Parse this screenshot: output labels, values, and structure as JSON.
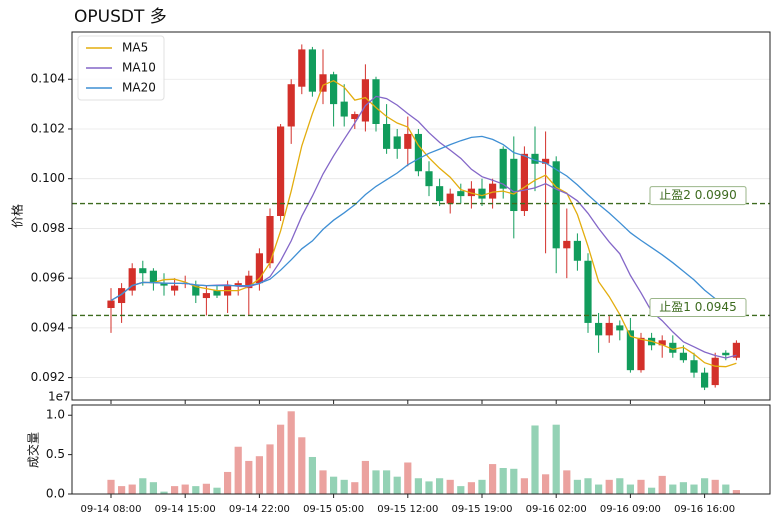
{
  "chart_data": [
    {
      "type": "candlestick",
      "title": "OPUSDT  多",
      "y_label": "价格",
      "categories": [
        "09-14 08:00",
        null,
        null,
        null,
        null,
        null,
        null,
        "09-14 15:00",
        null,
        null,
        null,
        null,
        null,
        null,
        "09-14 22:00",
        null,
        null,
        null,
        null,
        null,
        null,
        "09-15 05:00",
        null,
        null,
        null,
        null,
        null,
        null,
        "09-15 12:00",
        null,
        null,
        null,
        null,
        null,
        null,
        "09-15 19:00",
        null,
        null,
        null,
        null,
        null,
        null,
        "09-16 02:00",
        null,
        null,
        null,
        null,
        null,
        null,
        "09-16 09:00",
        null,
        null,
        null,
        null,
        null,
        null,
        "09-16 16:00",
        null,
        null,
        null
      ],
      "open": [
        0.0948,
        0.095,
        0.0955,
        0.0964,
        0.0963,
        0.0958,
        0.0955,
        0.0958,
        0.0957,
        0.0952,
        0.0955,
        0.0953,
        0.0957,
        0.0956,
        0.0958,
        0.0966,
        0.0985,
        0.1021,
        0.1037,
        0.1052,
        0.1035,
        0.1042,
        0.1031,
        0.1024,
        0.1023,
        0.104,
        0.1022,
        0.1017,
        0.1012,
        0.1018,
        0.1003,
        0.0997,
        0.099,
        0.0995,
        0.0993,
        0.0996,
        0.0992,
        0.1012,
        0.1008,
        0.0987,
        0.101,
        0.1006,
        0.1007,
        0.0972,
        0.0975,
        0.0967,
        0.0942,
        0.0937,
        0.0941,
        0.0939,
        0.0923,
        0.0936,
        0.0933,
        0.0934,
        0.093,
        0.0927,
        0.0922,
        0.0917,
        0.093,
        0.0928
      ],
      "high": [
        0.0956,
        0.0958,
        0.0966,
        0.0967,
        0.0964,
        0.0962,
        0.096,
        0.0961,
        0.0959,
        0.0957,
        0.0957,
        0.0959,
        0.0959,
        0.0963,
        0.0972,
        0.0988,
        0.1022,
        0.104,
        0.1054,
        0.1053,
        0.1052,
        0.1043,
        0.1038,
        0.1027,
        0.1046,
        0.1041,
        0.103,
        0.102,
        0.1025,
        0.102,
        0.1007,
        0.1,
        0.0996,
        0.0998,
        0.0999,
        0.1,
        0.1,
        0.1013,
        0.1017,
        0.1013,
        0.1021,
        0.1019,
        0.1009,
        0.0988,
        0.0978,
        0.097,
        0.0946,
        0.0945,
        0.0943,
        0.0944,
        0.0938,
        0.0938,
        0.0937,
        0.0937,
        0.0933,
        0.093,
        0.0924,
        0.093,
        0.0931,
        0.0935
      ],
      "low": [
        0.0938,
        0.0942,
        0.0953,
        0.0957,
        0.0955,
        0.0953,
        0.0953,
        0.0956,
        0.095,
        0.0945,
        0.0952,
        0.0946,
        0.0953,
        0.0945,
        0.0955,
        0.0964,
        0.0983,
        0.1014,
        0.1034,
        0.1033,
        0.103,
        0.1021,
        0.1021,
        0.102,
        0.1019,
        0.1019,
        0.101,
        0.1008,
        0.1005,
        0.1001,
        0.0993,
        0.0989,
        0.0986,
        0.099,
        0.0988,
        0.0989,
        0.0988,
        0.0992,
        0.0976,
        0.0985,
        0.0995,
        0.097,
        0.0962,
        0.096,
        0.0963,
        0.0938,
        0.093,
        0.0934,
        0.0935,
        0.0922,
        0.0922,
        0.0931,
        0.0928,
        0.0928,
        0.0926,
        0.092,
        0.0915,
        0.0916,
        0.0927,
        0.0927
      ],
      "close": [
        0.0951,
        0.0956,
        0.0964,
        0.0962,
        0.0958,
        0.0957,
        0.0957,
        0.0958,
        0.0953,
        0.0954,
        0.0953,
        0.0957,
        0.0958,
        0.0961,
        0.097,
        0.0985,
        0.1021,
        0.1038,
        0.1052,
        0.1035,
        0.1042,
        0.103,
        0.1025,
        0.1026,
        0.104,
        0.1022,
        0.1012,
        0.1012,
        0.1018,
        0.1003,
        0.0997,
        0.0991,
        0.0994,
        0.0993,
        0.0996,
        0.0992,
        0.0998,
        0.0996,
        0.0987,
        0.101,
        0.1006,
        0.1008,
        0.0972,
        0.0975,
        0.0967,
        0.0942,
        0.0937,
        0.0942,
        0.0939,
        0.0923,
        0.0936,
        0.0933,
        0.0935,
        0.093,
        0.0927,
        0.0922,
        0.0916,
        0.0928,
        0.0929,
        0.0934
      ],
      "up_color": "#d3302a",
      "down_color": "#119c5c",
      "series": [
        {
          "name": "MA5",
          "color": "#e3ad0e",
          "values": [
            0.0951,
            0.09535,
            0.0957,
            0.09583,
            0.09582,
            0.09594,
            0.09596,
            0.09584,
            0.09566,
            0.09558,
            0.0955,
            0.0955,
            0.0955,
            0.09566,
            0.09598,
            0.09662,
            0.0979,
            0.0995,
            0.10132,
            0.10262,
            0.10376,
            0.10394,
            0.10368,
            0.10316,
            0.10326,
            0.10286,
            0.1025,
            0.10224,
            0.10208,
            0.10134,
            0.10084,
            0.10042,
            0.10006,
            0.09956,
            0.09942,
            0.09932,
            0.09946,
            0.0995,
            0.09938,
            0.09966,
            0.09994,
            0.10014,
            0.09966,
            0.09942,
            0.09856,
            0.09728,
            0.09586,
            0.09526,
            0.09454,
            0.09366,
            0.09354,
            0.09346,
            0.09332,
            0.09314,
            0.09322,
            0.09294,
            0.0926,
            0.09246,
            0.09244,
            0.09258
          ]
        },
        {
          "name": "MA10",
          "color": "#8467c8",
          "values": [
            0.0951,
            0.09535,
            0.0957,
            0.09583,
            0.09582,
            0.0958,
            0.09579,
            0.09579,
            0.09573,
            0.0957,
            0.09572,
            0.09573,
            0.09567,
            0.09566,
            0.09578,
            0.09606,
            0.0967,
            0.0975,
            0.09849,
            0.0993,
            0.10019,
            0.10092,
            0.10159,
            0.10224,
            0.10294,
            0.10331,
            0.10322,
            0.10296,
            0.10262,
            0.1023,
            0.10185,
            0.10146,
            0.10115,
            0.10082,
            0.10038,
            0.10008,
            0.09994,
            0.09978,
            0.09947,
            0.09954,
            0.09963,
            0.0998,
            0.09958,
            0.0994,
            0.09911,
            0.09861,
            0.098,
            0.09746,
            0.09698,
            0.09611,
            0.09541,
            0.09466,
            0.09429,
            0.09384,
            0.09344,
            0.09324,
            0.09303,
            0.09289,
            0.09279,
            0.0929
          ]
        },
        {
          "name": "MA20",
          "color": "#3f8fd4",
          "values": [
            0.0951,
            0.09535,
            0.0957,
            0.09583,
            0.09582,
            0.0958,
            0.09579,
            0.09579,
            0.09573,
            0.0957,
            0.0957,
            0.0957,
            0.0957,
            0.0957,
            0.09579,
            0.09596,
            0.09632,
            0.09674,
            0.09718,
            0.0975,
            0.09796,
            0.09833,
            0.09863,
            0.09895,
            0.09936,
            0.09969,
            0.09996,
            0.10023,
            0.10056,
            0.1008,
            0.10102,
            0.10119,
            0.10137,
            0.10153,
            0.10166,
            0.1017,
            0.10158,
            0.10137,
            0.10105,
            0.10092,
            0.10074,
            0.10063,
            0.10037,
            0.10011,
            0.09975,
            0.09935,
            0.09897,
            0.09862,
            0.09823,
            0.09783,
            0.09752,
            0.09723,
            0.09694,
            0.09662,
            0.09628,
            0.09593,
            0.09552,
            0.09518,
            0.09489,
            0.09451
          ]
        }
      ],
      "ylim": [
        0.0911,
        0.1059
      ],
      "yticks": [
        0.092,
        0.094,
        0.096,
        0.098,
        {
          "value": 0.1,
          "label": "0.100"
        },
        0.102,
        0.104
      ],
      "hlines": [
        {
          "value": 0.099,
          "label": "止盈2 0.0990"
        },
        {
          "value": 0.0945,
          "label": "止盈1 0.0945"
        }
      ],
      "hline_color": "#3d6b1f",
      "grid": true,
      "legend": "upper left"
    },
    {
      "type": "bar",
      "y_label": "成交量",
      "offset_label": "1e7",
      "values": [
        0.18,
        0.1,
        0.12,
        0.2,
        0.15,
        0.03,
        0.1,
        0.12,
        0.1,
        0.13,
        0.08,
        0.28,
        0.6,
        0.42,
        0.48,
        0.63,
        0.88,
        1.05,
        0.72,
        0.47,
        0.3,
        0.22,
        0.18,
        0.15,
        0.42,
        0.3,
        0.3,
        0.22,
        0.4,
        0.2,
        0.16,
        0.2,
        0.18,
        0.1,
        0.15,
        0.18,
        0.38,
        0.33,
        0.32,
        0.2,
        0.87,
        0.25,
        0.88,
        0.3,
        0.18,
        0.2,
        0.12,
        0.18,
        0.2,
        0.12,
        0.18,
        0.08,
        0.23,
        0.12,
        0.15,
        0.12,
        0.2,
        0.18,
        0.12,
        0.05
      ],
      "ylim": [
        0,
        1.13
      ],
      "yticks": [
        {
          "value": 0,
          "label": "0.0"
        },
        0.5,
        {
          "value": 1,
          "label": "1.0"
        }
      ],
      "opacity": 0.45
    }
  ]
}
